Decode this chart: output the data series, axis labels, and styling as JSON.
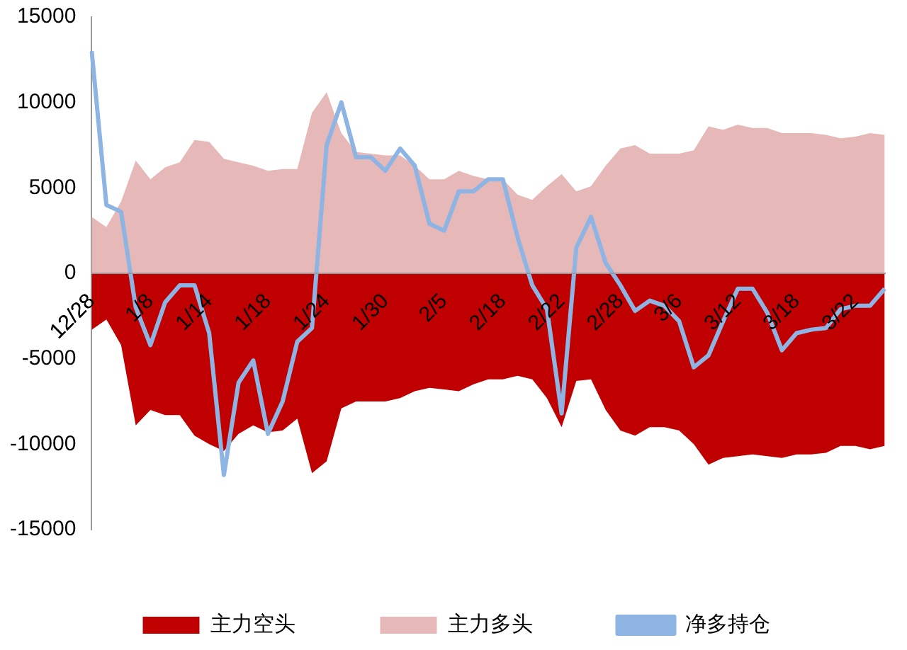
{
  "chart_data": {
    "type": "area",
    "categories": [
      "12/28",
      null,
      null,
      null,
      "1/8",
      null,
      null,
      null,
      "1/14",
      null,
      null,
      null,
      "1/18",
      null,
      null,
      null,
      "1/24",
      null,
      null,
      null,
      "1/30",
      null,
      null,
      null,
      "2/5",
      null,
      null,
      null,
      "2/18",
      null,
      null,
      null,
      "2/22",
      null,
      null,
      null,
      "2/28",
      null,
      null,
      null,
      "3/6",
      null,
      null,
      null,
      "3/12",
      null,
      null,
      null,
      "3/18",
      null,
      null,
      null,
      "3/22",
      null,
      null
    ],
    "series": [
      {
        "name": "主力空头",
        "type": "area",
        "color": "#c00000",
        "values": [
          -3300,
          -2700,
          -4200,
          -8900,
          -8000,
          -8300,
          -8300,
          -9500,
          -10000,
          -10400,
          -9400,
          -8900,
          -9300,
          -9200,
          -8500,
          -11700,
          -11000,
          -7900,
          -7500,
          -7500,
          -7500,
          -7300,
          -6900,
          -6700,
          -6800,
          -6900,
          -6500,
          -6200,
          -6200,
          -6000,
          -6200,
          -7300,
          -9000,
          -6300,
          -6200,
          -8000,
          -9200,
          -9500,
          -9000,
          -9000,
          -9200,
          -10000,
          -11200,
          -10800,
          -10700,
          -10600,
          -10700,
          -10800,
          -10600,
          -10600,
          -10500,
          -10100,
          -10100,
          -10300,
          -10100
        ]
      },
      {
        "name": "主力多头",
        "type": "area",
        "color": "#e6b9b8",
        "values": [
          3300,
          2700,
          4200,
          6600,
          5500,
          6200,
          6500,
          7800,
          7700,
          6700,
          6500,
          6300,
          6000,
          6100,
          6100,
          9400,
          10600,
          8200,
          7100,
          7000,
          6900,
          6900,
          6300,
          5500,
          5500,
          6000,
          5700,
          5500,
          5500,
          4600,
          4300,
          5100,
          5800,
          4800,
          5100,
          6300,
          7300,
          7500,
          7000,
          7000,
          7000,
          7200,
          8600,
          8400,
          8700,
          8500,
          8500,
          8200,
          8200,
          8200,
          8100,
          7900,
          8000,
          8200,
          8100
        ]
      },
      {
        "name": "净多持仓",
        "type": "line",
        "color": "#8db4e2",
        "values": [
          13000,
          4000,
          3600,
          -2000,
          -4200,
          -1700,
          -700,
          -700,
          -3500,
          -11800,
          -6400,
          -5100,
          -9400,
          -7500,
          -4000,
          -3200,
          7500,
          10000,
          6800,
          6800,
          6000,
          7300,
          6300,
          2900,
          2500,
          4800,
          4800,
          5500,
          5500,
          2100,
          -700,
          -2100,
          -8200,
          1500,
          3300,
          600,
          -700,
          -2200,
          -1600,
          -1900,
          -2800,
          -5500,
          -4800,
          -2800,
          -900,
          -900,
          -2300,
          -4500,
          -3500,
          -3300,
          -3200,
          -2100,
          -1900,
          -1900,
          -900
        ]
      }
    ],
    "ylim": [
      -15000,
      15000
    ],
    "yticks": [
      -15000,
      -10000,
      -5000,
      0,
      5000,
      10000,
      15000
    ],
    "grid": false,
    "legend": "bottom",
    "marker": "none",
    "line_style": "solid"
  }
}
